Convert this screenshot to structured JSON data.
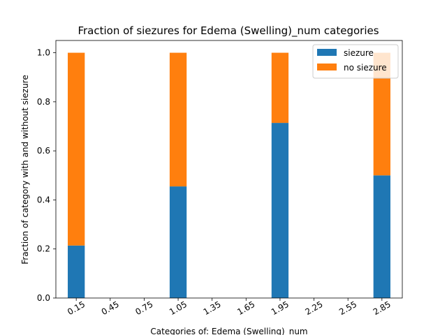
{
  "chart_data": {
    "type": "bar",
    "stacked": true,
    "title": "Fraction of siezures for Edema (Swelling)_num categories",
    "xlabel": "Categories of: Edema (Swelling)_num",
    "ylabel": "Fraction of category with and without siezure",
    "x_ticks": [
      "0.15",
      "0.45",
      "0.75",
      "1.05",
      "1.35",
      "1.65",
      "1.95",
      "2.25",
      "2.55",
      "2.85"
    ],
    "y_ticks": [
      "0.0",
      "0.2",
      "0.4",
      "0.6",
      "0.8",
      "1.0"
    ],
    "xlim": [
      -0.03,
      3.03
    ],
    "ylim": [
      0,
      1.05
    ],
    "bar_width": 0.15,
    "x": [
      0.15,
      1.05,
      1.95,
      2.85
    ],
    "series": [
      {
        "name": "siezure",
        "color": "#1f77b4",
        "values": [
          0.214,
          0.455,
          0.714,
          0.5
        ]
      },
      {
        "name": "no siezure",
        "color": "#ff7f0e",
        "values": [
          0.786,
          0.545,
          0.286,
          0.5
        ]
      }
    ],
    "legend_position": "top-right",
    "grid": false
  }
}
